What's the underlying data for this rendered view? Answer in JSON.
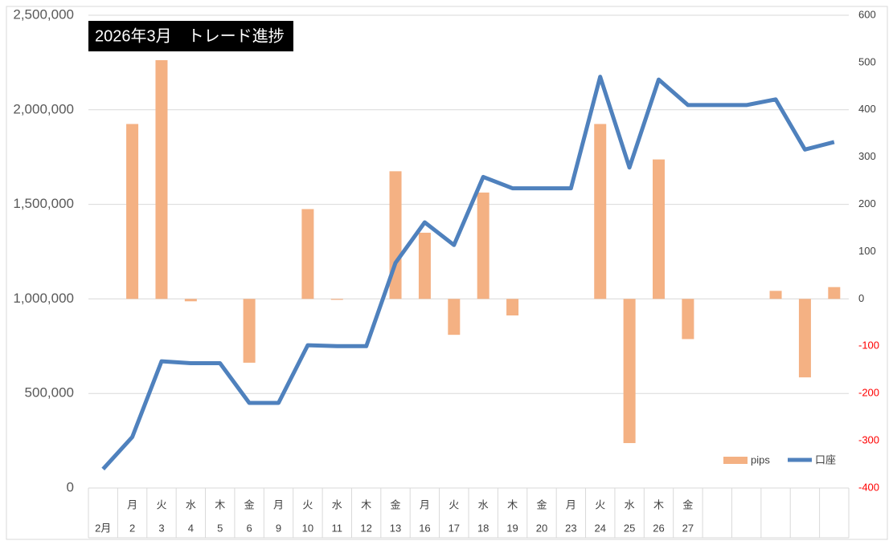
{
  "chart_data": {
    "type": "bar-line",
    "title": "2026年3月　トレード進捗",
    "categories": [
      "2月",
      "2",
      "3",
      "4",
      "5",
      "6",
      "9",
      "10",
      "11",
      "12",
      "13",
      "16",
      "17",
      "18",
      "19",
      "20",
      "23",
      "24",
      "25",
      "26",
      "27",
      null,
      null,
      null,
      null,
      null
    ],
    "weekdays": [
      null,
      "月",
      "火",
      "水",
      "木",
      "金",
      "月",
      "火",
      "水",
      "木",
      "金",
      "月",
      "火",
      "水",
      "木",
      "金",
      "月",
      "火",
      "水",
      "木",
      "金",
      null,
      null,
      null,
      null,
      null
    ],
    "series": [
      {
        "name": "pips",
        "type": "bar",
        "axis": "y2",
        "color": "#f4b183",
        "values": [
          null,
          370,
          505,
          -5,
          null,
          -135,
          null,
          190,
          -2,
          null,
          270,
          140,
          -76,
          225,
          -35,
          null,
          null,
          370,
          -305,
          295,
          -85,
          null,
          null,
          17,
          -166,
          25
        ]
      },
      {
        "name": "口座",
        "type": "line",
        "axis": "y",
        "color": "#4f81bd",
        "values": [
          100000,
          270000,
          670000,
          660000,
          660000,
          450000,
          450000,
          755000,
          750000,
          750000,
          1190000,
          1405000,
          1285000,
          1645000,
          1585000,
          1585000,
          1585000,
          2175000,
          1695000,
          2160000,
          2025000,
          2025000,
          2025000,
          2055000,
          1790000,
          1830000
        ]
      }
    ],
    "ylim": [
      0,
      2500000
    ],
    "yticks": [
      0,
      {
        "value": 500000,
        "label": "500,000"
      },
      {
        "value": 1000000,
        "label": "1,000,000"
      },
      {
        "value": 1500000,
        "label": "1,500,000"
      },
      {
        "value": 2000000,
        "label": "2,000,000"
      },
      {
        "value": 2500000,
        "label": "2,500,000"
      }
    ],
    "y2lim": [
      -400,
      600
    ],
    "y2ticks": [
      -400,
      -300,
      -200,
      -100,
      0,
      100,
      200,
      300,
      400,
      500,
      600
    ],
    "negative_tick_color": "#ff0000",
    "grid": true,
    "legend": "lower-right"
  }
}
